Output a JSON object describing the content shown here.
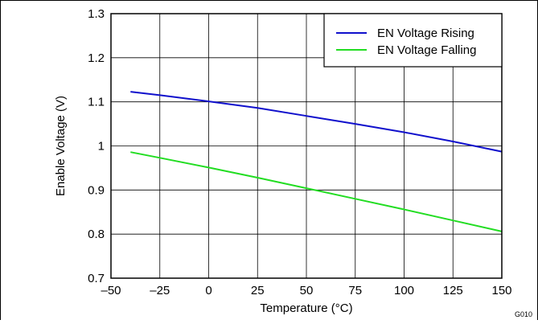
{
  "chart_data": {
    "type": "line",
    "xlabel": "Temperature (°C)",
    "ylabel": "Enable Voltage (V)",
    "xlim": [
      -50,
      150
    ],
    "ylim": [
      0.7,
      1.3
    ],
    "xticks": [
      -50,
      -25,
      0,
      25,
      50,
      75,
      100,
      125,
      150
    ],
    "xtick_labels": [
      "–50",
      "–25",
      "0",
      "25",
      "50",
      "75",
      "100",
      "125",
      "150"
    ],
    "yticks": [
      0.7,
      0.8,
      0.9,
      1.0,
      1.1,
      1.2,
      1.3
    ],
    "ytick_labels": [
      "0.7",
      "0.8",
      "0.9",
      "1",
      "1.1",
      "1.2",
      "1.3"
    ],
    "grid": true,
    "legend_position": "top-right",
    "series": [
      {
        "name": "EN Voltage Rising",
        "color": "#1010cc",
        "x": [
          -40,
          -25,
          0,
          25,
          50,
          75,
          100,
          125,
          150
        ],
        "y": [
          1.123,
          1.115,
          1.101,
          1.086,
          1.068,
          1.05,
          1.031,
          1.01,
          0.987
        ]
      },
      {
        "name": "EN Voltage Falling",
        "color": "#22dd22",
        "x": [
          -40,
          -25,
          0,
          25,
          50,
          75,
          100,
          125,
          150
        ],
        "y": [
          0.986,
          0.973,
          0.951,
          0.928,
          0.904,
          0.88,
          0.856,
          0.831,
          0.806
        ]
      }
    ],
    "annotation": "G010"
  }
}
